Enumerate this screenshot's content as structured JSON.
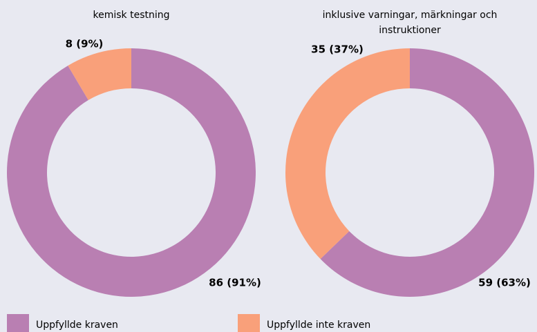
{
  "chart_data": [
    {
      "type": "pie",
      "title": "kemisk testning",
      "categories": [
        "Uppfyllde kraven",
        "Uppfyllde inte kraven"
      ],
      "values": [
        86,
        8
      ],
      "value_labels": [
        "86 (91%)",
        "8 (9%)"
      ],
      "colors": [
        "#b97fb2",
        "#f9a07a"
      ]
    },
    {
      "type": "pie",
      "title": "inklusive varningar, märkningar och instruktioner",
      "categories": [
        "Uppfyllde kraven",
        "Uppfyllde inte kraven"
      ],
      "values": [
        59,
        35
      ],
      "value_labels": [
        "59 (63%)",
        "35 (37%)"
      ],
      "colors": [
        "#b97fb2",
        "#f9a07a"
      ]
    }
  ]
}
